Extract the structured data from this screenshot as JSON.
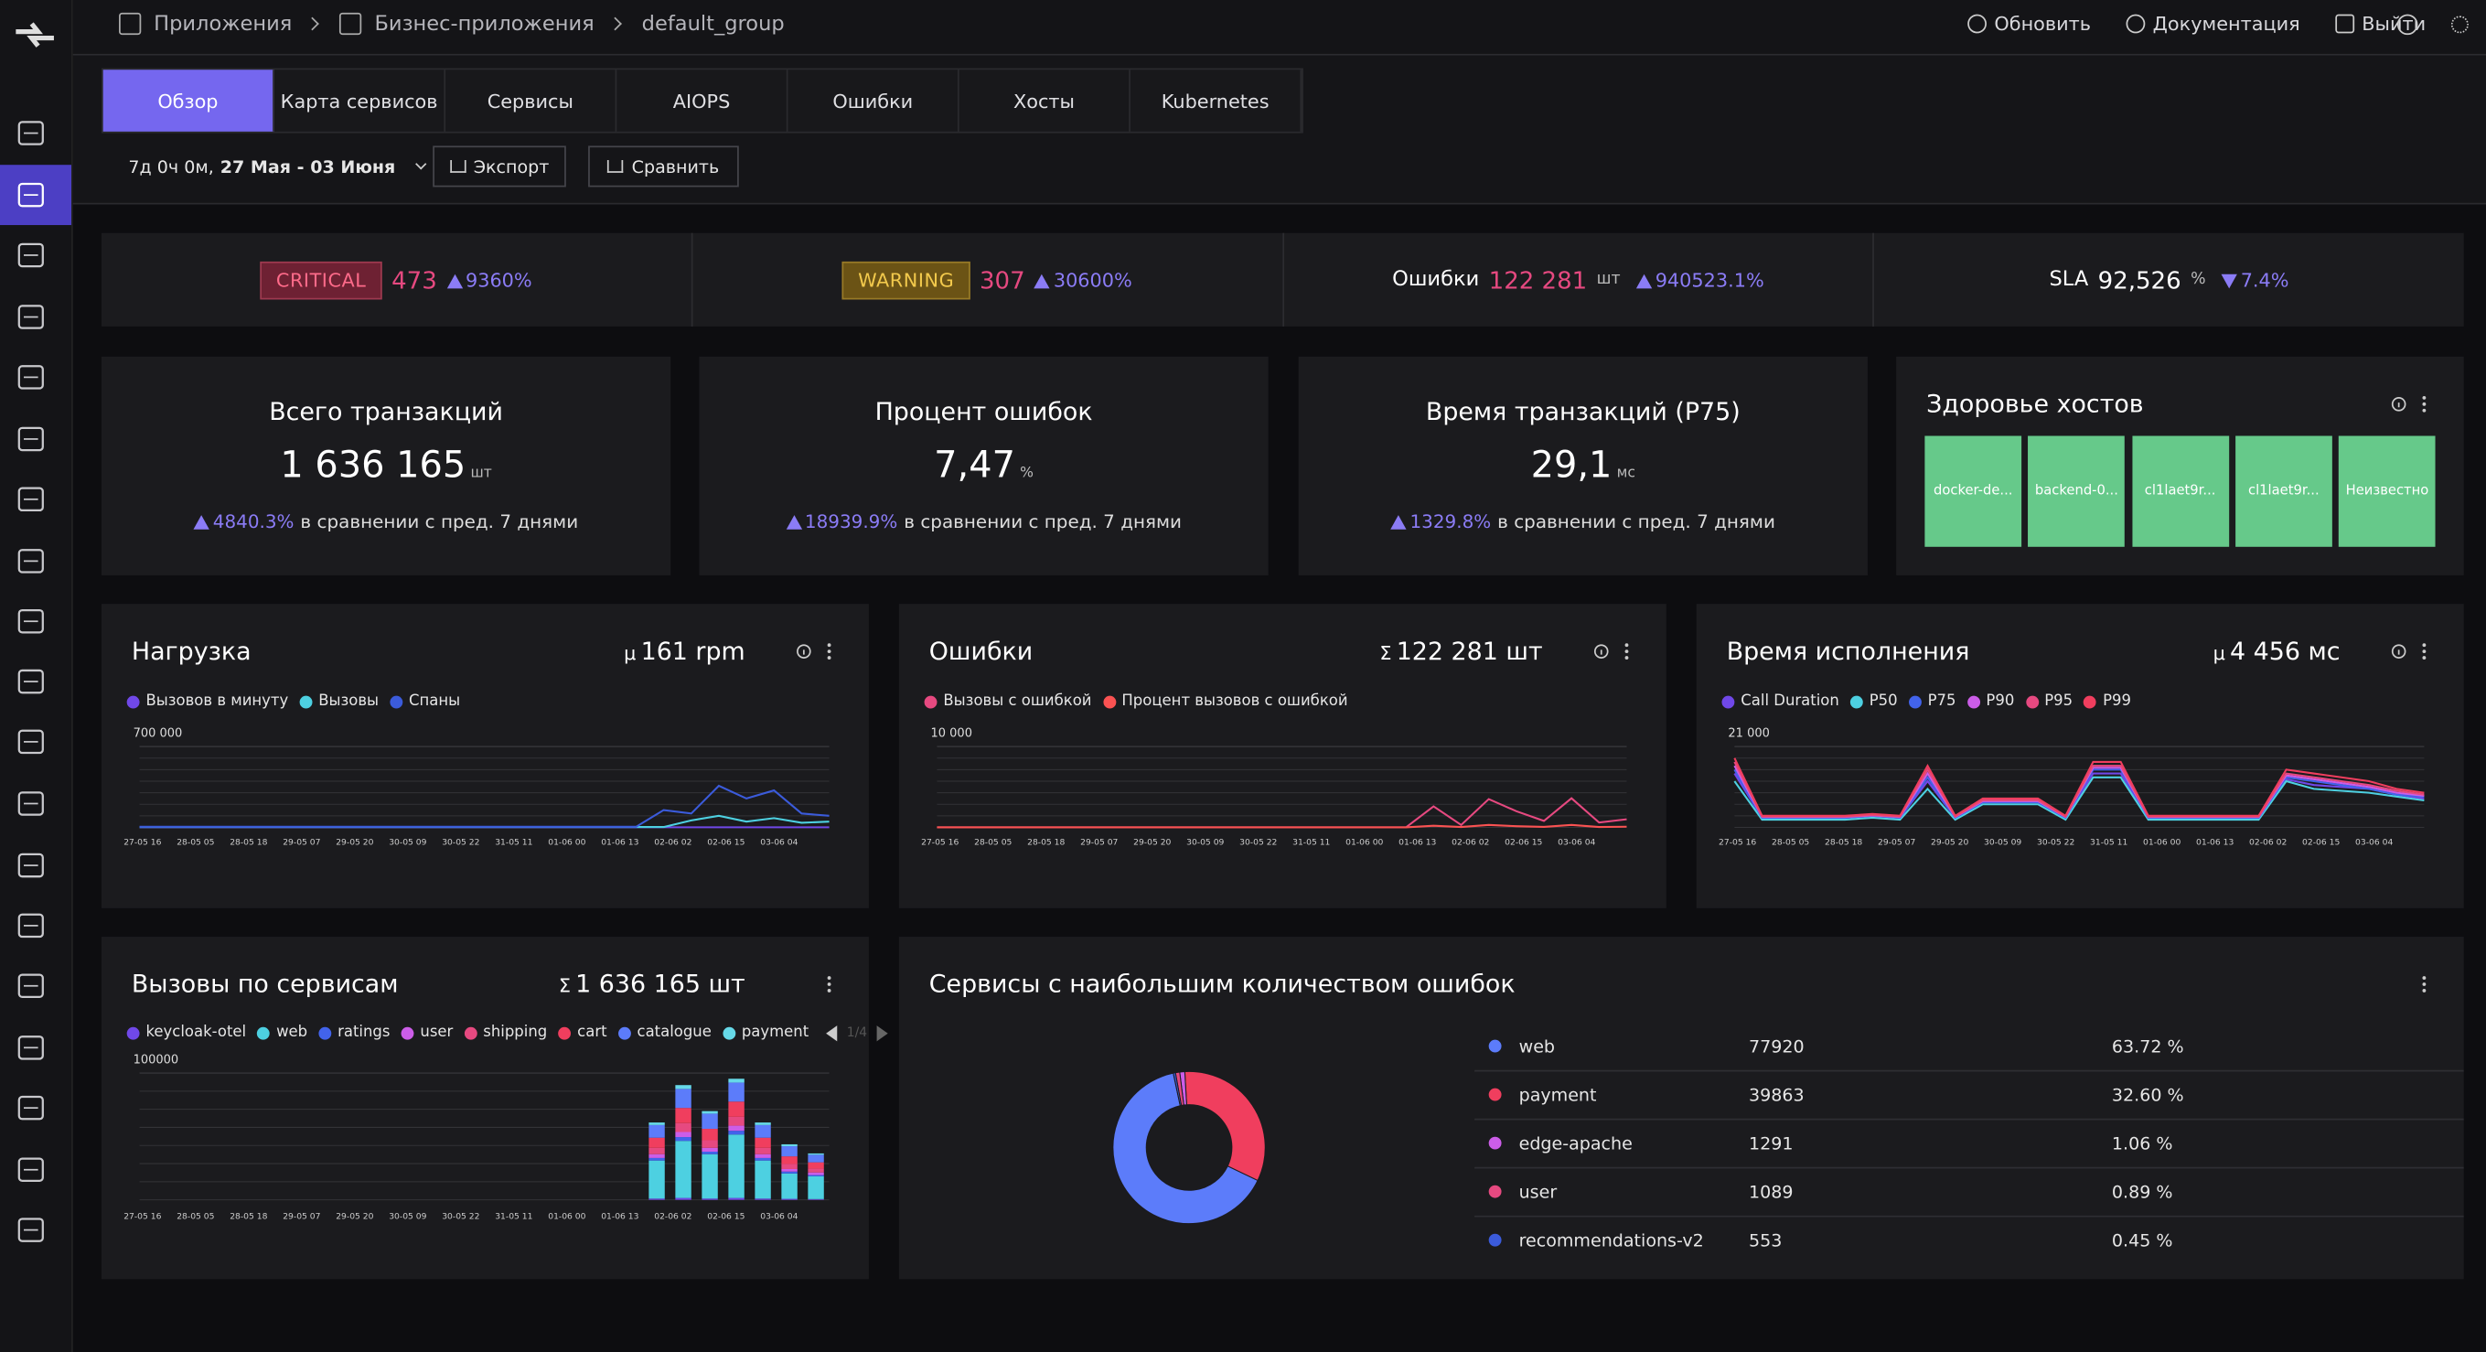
{
  "breadcrumbs": [
    "Приложения",
    "Бизнес-приложения",
    "default_group"
  ],
  "top_actions": [
    "Обновить",
    "Документация",
    "Выйти"
  ],
  "tabs": [
    "Обзор",
    "Карта сервисов",
    "Сервисы",
    "AIOPS",
    "Ошибки",
    "Хосты",
    "Kubernetes"
  ],
  "active_tab": 0,
  "filter": {
    "period": "7д 0ч 0м,",
    "range": "27 Мая - 03 Июня",
    "buttons": [
      "Экспорт",
      "Сравнить"
    ]
  },
  "status": [
    {
      "label": "CRITICAL",
      "badge_color": "#6e2133",
      "label_color": "#ff6b8a",
      "value": "473",
      "value_color": "#e64980",
      "trend": "up",
      "change": "9360%"
    },
    {
      "label": "WARNING",
      "badge_color": "#6b5315",
      "label_color": "#f2c94c",
      "value": "307",
      "value_color": "#e64980",
      "trend": "up",
      "change": "30600%"
    },
    {
      "label": "Ошибки",
      "value": "122 281",
      "value_color": "#e64980",
      "unit": "шт",
      "trend": "up",
      "change": "940523.1%"
    },
    {
      "label": "SLA",
      "value": "92,526",
      "value_color": "#ffffff",
      "unit": "%",
      "trend": "down",
      "change": "7.4%"
    }
  ],
  "kpis": [
    {
      "title": "Всего транзакций",
      "value": "1 636 165",
      "unit": "шт",
      "trend": "up",
      "change": "4840.3%",
      "note": "в сравнении с пред. 7 днями"
    },
    {
      "title": "Процент ошибок",
      "value": "7,47",
      "unit": "%",
      "trend": "up",
      "change": "18939.9%",
      "note": "в сравнении с пред. 7 днями"
    },
    {
      "title": "Время транзакций (P75)",
      "value": "29,1",
      "unit": "мс",
      "trend": "up",
      "change": "1329.8%",
      "note": "в сравнении с пред. 7 днями"
    }
  ],
  "hosts": {
    "title": "Здоровье хостов",
    "color": "#66c98a",
    "items": [
      "docker-de...",
      "backend-0...",
      "cl1laet9r...",
      "cl1laet9r...",
      "Неизвестно"
    ]
  },
  "panels": [
    {
      "type": "line",
      "title": "Нагрузка",
      "summary_symbol": "μ",
      "summary": "161 rpm",
      "ylim": [
        0,
        700000
      ],
      "yticks": [
        {
          "value": 700000,
          "label": "700 000"
        }
      ],
      "xtick_labels": [
        "27-05 16",
        "28-05 05",
        "28-05 18",
        "29-05 07",
        "29-05 20",
        "30-05 09",
        "30-05 22",
        "31-05 11",
        "01-06 00",
        "01-06 13",
        "02-06 02",
        "02-06 15",
        "03-06 04"
      ],
      "series": [
        {
          "name": "Вызовов в минуту",
          "color": "#7048e8",
          "values": [
            1000,
            1000,
            1000,
            1000,
            1000,
            1000,
            1000,
            1000,
            1000,
            1000,
            1000,
            1000,
            1000,
            1000,
            1000,
            1000,
            1000,
            1000,
            1000,
            1000,
            1000,
            1000,
            1000,
            1000,
            1000,
            1000
          ]
        },
        {
          "name": "Вызовы",
          "color": "#4dd0e1",
          "values": [
            3000,
            3000,
            3000,
            3000,
            3000,
            3000,
            3000,
            3000,
            3000,
            3000,
            3000,
            3000,
            3000,
            3000,
            3000,
            3000,
            3000,
            3000,
            3000,
            3000,
            60000,
            100000,
            50000,
            80000,
            40000,
            50000
          ]
        },
        {
          "name": "Спаны",
          "color": "#3b5bdb",
          "values": [
            5000,
            5000,
            5000,
            5000,
            5000,
            5000,
            5000,
            5000,
            5000,
            5000,
            5000,
            5000,
            5000,
            5000,
            5000,
            5000,
            5000,
            5000,
            5000,
            150000,
            120000,
            360000,
            250000,
            320000,
            120000,
            100000
          ]
        }
      ]
    },
    {
      "type": "line",
      "title": "Ошибки",
      "summary_symbol": "Σ",
      "summary": "122 281 шт",
      "ylim": [
        0,
        10000
      ],
      "yticks": [
        {
          "value": 10000,
          "label": "10 000"
        }
      ],
      "xtick_labels": [
        "27-05 16",
        "28-05 05",
        "28-05 18",
        "29-05 07",
        "29-05 20",
        "30-05 09",
        "30-05 22",
        "31-05 11",
        "01-06 00",
        "01-06 13",
        "02-06 02",
        "02-06 15",
        "03-06 04"
      ],
      "series": [
        {
          "name": "Вызовы с ошибкой",
          "color": "#e64980",
          "values": [
            0,
            0,
            0,
            0,
            0,
            0,
            0,
            0,
            0,
            0,
            0,
            0,
            0,
            0,
            0,
            0,
            0,
            0,
            2600,
            300,
            3500,
            2000,
            800,
            3600,
            600,
            1000
          ]
        },
        {
          "name": "Процент вызовов с ошибкой",
          "color": "#fa5252",
          "values": [
            0,
            0,
            0,
            0,
            0,
            0,
            0,
            0,
            0,
            0,
            0,
            0,
            0,
            0,
            0,
            0,
            0,
            0,
            200,
            50,
            300,
            150,
            60,
            300,
            50,
            80
          ]
        }
      ]
    },
    {
      "type": "line",
      "title": "Время исполнения",
      "summary_symbol": "μ",
      "summary": "4 456 мс",
      "ylim": [
        0,
        21000
      ],
      "yticks": [
        {
          "value": 21000,
          "label": "21 000"
        }
      ],
      "xtick_labels": [
        "27-05 16",
        "28-05 05",
        "28-05 18",
        "29-05 07",
        "29-05 20",
        "30-05 09",
        "30-05 22",
        "31-05 11",
        "01-06 00",
        "01-06 13",
        "02-06 02",
        "02-06 15",
        "03-06 04"
      ],
      "series": [
        {
          "name": "Call Duration",
          "color": "#7048e8",
          "values": [
            14000,
            2500,
            2500,
            2500,
            2500,
            3000,
            2500,
            12000,
            2500,
            6500,
            6500,
            6500,
            2500,
            14000,
            14000,
            2500,
            2500,
            2500,
            2500,
            2500,
            12500,
            11000,
            10500,
            10000,
            8500,
            7500
          ]
        },
        {
          "name": "P50",
          "color": "#4dd0e1",
          "values": [
            12000,
            2000,
            2000,
            2000,
            2000,
            2500,
            2000,
            10000,
            2000,
            6000,
            6000,
            6000,
            2000,
            13000,
            13000,
            2000,
            2000,
            2000,
            2000,
            2000,
            12000,
            10000,
            9500,
            9000,
            8000,
            7000
          ]
        },
        {
          "name": "P75",
          "color": "#4263eb",
          "values": [
            15000,
            2500,
            2500,
            2500,
            2500,
            3000,
            2500,
            13000,
            2500,
            6500,
            6500,
            6500,
            2500,
            15000,
            15000,
            2500,
            2500,
            2500,
            2500,
            2500,
            13000,
            12000,
            11000,
            10000,
            8500,
            8000
          ]
        },
        {
          "name": "P90",
          "color": "#cc5de8",
          "values": [
            16000,
            2700,
            2700,
            2700,
            2700,
            3100,
            2700,
            14000,
            2700,
            6800,
            6800,
            6800,
            2700,
            15500,
            15500,
            2700,
            2700,
            2700,
            2700,
            2700,
            13500,
            12500,
            11500,
            10500,
            9000,
            8200
          ]
        },
        {
          "name": "P95",
          "color": "#e64980",
          "values": [
            17000,
            2800,
            2800,
            2800,
            2800,
            3200,
            2800,
            15000,
            2800,
            7000,
            7000,
            7000,
            2800,
            16000,
            16000,
            2800,
            2800,
            2800,
            2800,
            2800,
            14000,
            13000,
            12000,
            11000,
            9500,
            8500
          ]
        },
        {
          "name": "P99",
          "color": "#f03e5e",
          "values": [
            18000,
            3000,
            3000,
            3000,
            3000,
            3500,
            3000,
            16000,
            3000,
            7500,
            7500,
            7500,
            3000,
            17000,
            17000,
            3000,
            3000,
            3000,
            3000,
            3000,
            15000,
            14000,
            13000,
            12000,
            10000,
            9000
          ]
        }
      ]
    }
  ],
  "services_chart": {
    "type": "stacked_bar",
    "title": "Вызовы по сервисам",
    "summary_symbol": "Σ",
    "summary": "1 636 165 шт",
    "pager": "1/4",
    "ylim": [
      0,
      100000
    ],
    "yticks": [
      100000
    ],
    "xtick_labels": [
      "27-05 16",
      "28-05 05",
      "28-05 18",
      "29-05 07",
      "29-05 20",
      "30-05 09",
      "30-05 22",
      "31-05 11",
      "01-06 00",
      "01-06 13",
      "02-06 02",
      "02-06 15",
      "03-06 04"
    ],
    "series": [
      {
        "name": "keycloak-otel",
        "color": "#7048e8",
        "values": [
          0,
          0,
          0,
          0,
          0,
          0,
          0,
          0,
          0,
          0,
          0,
          0,
          0,
          0,
          0,
          0,
          0,
          0,
          0,
          1000,
          1500,
          1000,
          1500,
          1000,
          800,
          600
        ]
      },
      {
        "name": "web",
        "color": "#4dd0e1",
        "values": [
          0,
          0,
          0,
          0,
          0,
          0,
          0,
          0,
          0,
          0,
          0,
          0,
          0,
          0,
          0,
          0,
          0,
          0,
          0,
          30000,
          45000,
          35000,
          50000,
          30000,
          20000,
          18000
        ]
      },
      {
        "name": "ratings",
        "color": "#4263eb",
        "values": [
          0,
          0,
          0,
          0,
          0,
          0,
          0,
          0,
          0,
          0,
          0,
          0,
          0,
          0,
          0,
          0,
          0,
          0,
          0,
          2000,
          3000,
          2000,
          3000,
          2000,
          1500,
          1000
        ]
      },
      {
        "name": "user",
        "color": "#cc5de8",
        "values": [
          0,
          0,
          0,
          0,
          0,
          0,
          0,
          0,
          0,
          0,
          0,
          0,
          0,
          0,
          0,
          0,
          0,
          0,
          0,
          3000,
          4000,
          3000,
          4000,
          3000,
          2000,
          2000
        ]
      },
      {
        "name": "shipping",
        "color": "#e64980",
        "values": [
          0,
          0,
          0,
          0,
          0,
          0,
          0,
          0,
          0,
          0,
          0,
          0,
          0,
          0,
          0,
          0,
          0,
          0,
          0,
          5000,
          7000,
          6000,
          7000,
          5000,
          4000,
          3000
        ]
      },
      {
        "name": "cart",
        "color": "#f03e5e",
        "values": [
          0,
          0,
          0,
          0,
          0,
          0,
          0,
          0,
          0,
          0,
          0,
          0,
          0,
          0,
          0,
          0,
          0,
          0,
          0,
          8000,
          12000,
          9000,
          12000,
          8000,
          6000,
          5000
        ]
      },
      {
        "name": "catalogue",
        "color": "#5c7cfa",
        "values": [
          0,
          0,
          0,
          0,
          0,
          0,
          0,
          0,
          0,
          0,
          0,
          0,
          0,
          0,
          0,
          0,
          0,
          0,
          0,
          10000,
          15000,
          12000,
          15000,
          10000,
          8000,
          6000
        ]
      },
      {
        "name": "payment",
        "color": "#66d9e8",
        "values": [
          0,
          0,
          0,
          0,
          0,
          0,
          0,
          0,
          0,
          0,
          0,
          0,
          0,
          0,
          0,
          0,
          0,
          0,
          0,
          2000,
          3000,
          2000,
          3000,
          2000,
          1500,
          1000
        ]
      }
    ]
  },
  "top_errors": {
    "type": "donut",
    "title": "Сервисы с наибольшим количеством ошибок",
    "rows": [
      {
        "name": "web",
        "color": "#5c7cfa",
        "count": 77920,
        "percent": "63.72 %"
      },
      {
        "name": "payment",
        "color": "#f03e5e",
        "count": 39863,
        "percent": "32.60 %"
      },
      {
        "name": "edge-apache",
        "color": "#cc5de8",
        "count": 1291,
        "percent": "1.06 %"
      },
      {
        "name": "user",
        "color": "#e64980",
        "count": 1089,
        "percent": "0.89 %"
      },
      {
        "name": "recommendations-v2",
        "color": "#3b5bdb",
        "count": 553,
        "percent": "0.45 %"
      }
    ]
  }
}
